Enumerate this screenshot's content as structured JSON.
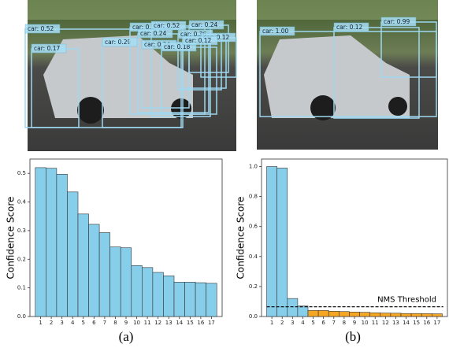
{
  "chart_data": [
    {
      "type": "bar",
      "ylabel": "Confidence Score",
      "categories": [
        "1",
        "2",
        "3",
        "4",
        "5",
        "6",
        "7",
        "8",
        "9",
        "10",
        "11",
        "12",
        "13",
        "14",
        "15",
        "16",
        "17"
      ],
      "values": [
        0.52,
        0.518,
        0.497,
        0.435,
        0.358,
        0.322,
        0.293,
        0.243,
        0.24,
        0.178,
        0.171,
        0.154,
        0.142,
        0.12,
        0.12,
        0.118,
        0.116
      ],
      "color": "#87ceeb",
      "ylim": [
        0,
        0.55
      ],
      "yticks": [
        {
          "value": 0,
          "label": "0.0"
        },
        0.1,
        0.2,
        0.3,
        0.4,
        0.5
      ]
    },
    {
      "type": "bar",
      "ylabel": "Confidence Score",
      "categories": [
        "1",
        "2",
        "3",
        "4",
        "5",
        "6",
        "7",
        "8",
        "9",
        "10",
        "11",
        "12",
        "13",
        "14",
        "15",
        "16",
        "17"
      ],
      "values": [
        1.0,
        0.99,
        0.12,
        0.07,
        0.04,
        0.04,
        0.035,
        0.033,
        0.03,
        0.028,
        0.025,
        0.023,
        0.022,
        0.02,
        0.02,
        0.019,
        0.018
      ],
      "colors": [
        "#87ceeb",
        "#87ceeb",
        "#87ceeb",
        "#87ceeb",
        "#f5a623",
        "#f5a623",
        "#f5a623",
        "#f5a623",
        "#f5a623",
        "#f5a623",
        "#f5a623",
        "#f5a623",
        "#f5a623",
        "#f5a623",
        "#f5a623",
        "#f5a623",
        "#f5a623"
      ],
      "ylim": [
        0,
        1.05
      ],
      "yticks": [
        {
          "value": 0,
          "label": "0.0"
        },
        0.2,
        0.4,
        0.6,
        0.8,
        {
          "value": 1,
          "label": "1.0"
        }
      ],
      "threshold": 0.065,
      "threshold_label": "NMS Threshold"
    }
  ],
  "images": [
    {
      "labels": [
        "car: 0.52",
        "car: 0.17",
        "car: 0.29",
        "car: 0.5",
        "car: 0.52",
        "car: 0.24",
        "car: 0.24",
        "car: 0.36",
        "car: 0.12",
        "car: 0.24",
        "car: 0.18",
        "car: 0.12"
      ]
    },
    {
      "labels": [
        "car: 1.00",
        "car: 0.12",
        "car: 0.99"
      ]
    }
  ],
  "captions": [
    "(a)",
    "(b)"
  ]
}
